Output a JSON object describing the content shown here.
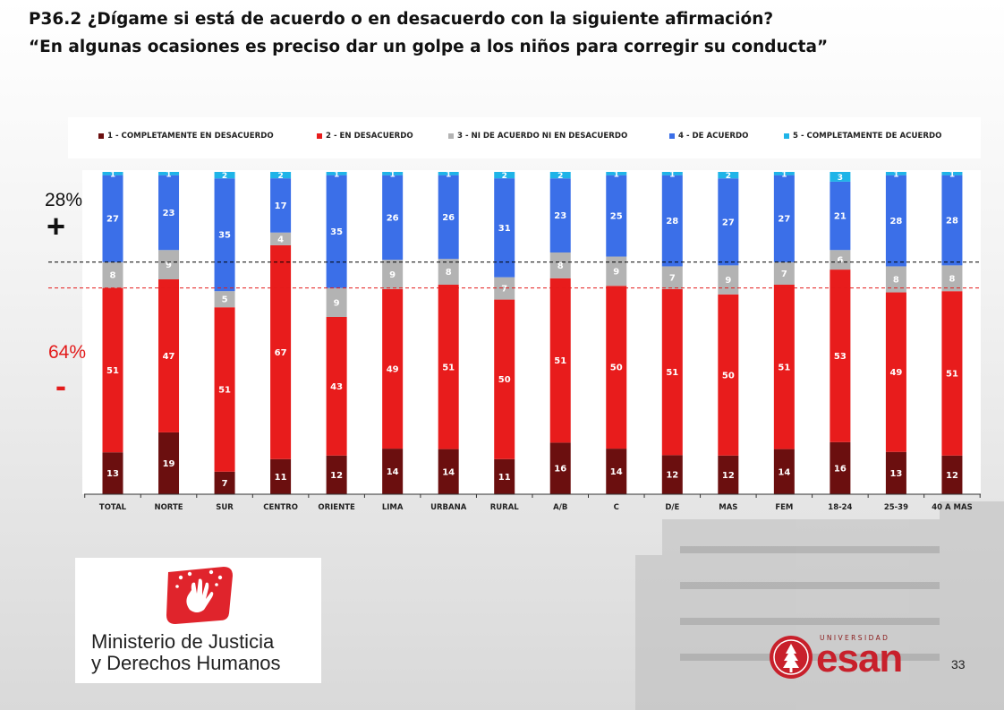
{
  "title": {
    "line1": "P36.2 ¿Dígame si está de acuerdo o en desacuerdo con la siguiente afirmación?",
    "line2": "“En algunas ocasiones es preciso dar un golpe a los niños para corregir su conducta”"
  },
  "side_labels": {
    "positive_pct": "28%",
    "positive_sign": "+",
    "negative_pct": "64%",
    "negative_sign": "-"
  },
  "colors": {
    "s1": "#6b0f0f",
    "s2": "#e81c1c",
    "s3": "#b3b3b3",
    "s4": "#3b6fe8",
    "s5": "#1fb4e8",
    "dashed_black": "#000000",
    "dashed_red": "#e31b1b"
  },
  "chart_data": {
    "type": "bar",
    "stacked": true,
    "categories": [
      "TOTAL",
      "NORTE",
      "SUR",
      "CENTRO",
      "ORIENTE",
      "LIMA",
      "URBANA",
      "RURAL",
      "A/B",
      "C",
      "D/E",
      "MAS",
      "FEM",
      "18-24",
      "25-39",
      "40 A MAS"
    ],
    "series": [
      {
        "name": "1 - COMPLETAMENTE EN DESACUERDO",
        "values": [
          13,
          19,
          7,
          11,
          12,
          14,
          14,
          11,
          16,
          14,
          12,
          12,
          14,
          16,
          13,
          12
        ]
      },
      {
        "name": "2 - EN DESACUERDO",
        "values": [
          51,
          47,
          51,
          67,
          43,
          49,
          51,
          50,
          51,
          50,
          51,
          50,
          51,
          53,
          49,
          51
        ]
      },
      {
        "name": "3 - NI DE ACUERDO NI EN DESACUERDO",
        "values": [
          8,
          9,
          5,
          4,
          9,
          9,
          8,
          7,
          8,
          9,
          7,
          9,
          7,
          6,
          8,
          8
        ]
      },
      {
        "name": "4 - DE ACUERDO",
        "values": [
          27,
          23,
          35,
          17,
          35,
          26,
          26,
          31,
          23,
          25,
          28,
          27,
          27,
          21,
          28,
          28
        ]
      },
      {
        "name": "5 - COMPLETAMENTE DE ACUERDO",
        "values": [
          1,
          1,
          2,
          2,
          1,
          1,
          1,
          2,
          2,
          1,
          1,
          2,
          1,
          3,
          1,
          1
        ]
      }
    ],
    "legend_position": "top",
    "ylim": [
      0,
      100
    ],
    "reference_lines": [
      28,
      64
    ]
  },
  "logos": {
    "ministerio_line1": "Ministerio de Justicia",
    "ministerio_line2": "y Derechos Humanos",
    "esan_univ": "UNIVERSIDAD",
    "esan_name": "esan"
  },
  "page_number": "33"
}
